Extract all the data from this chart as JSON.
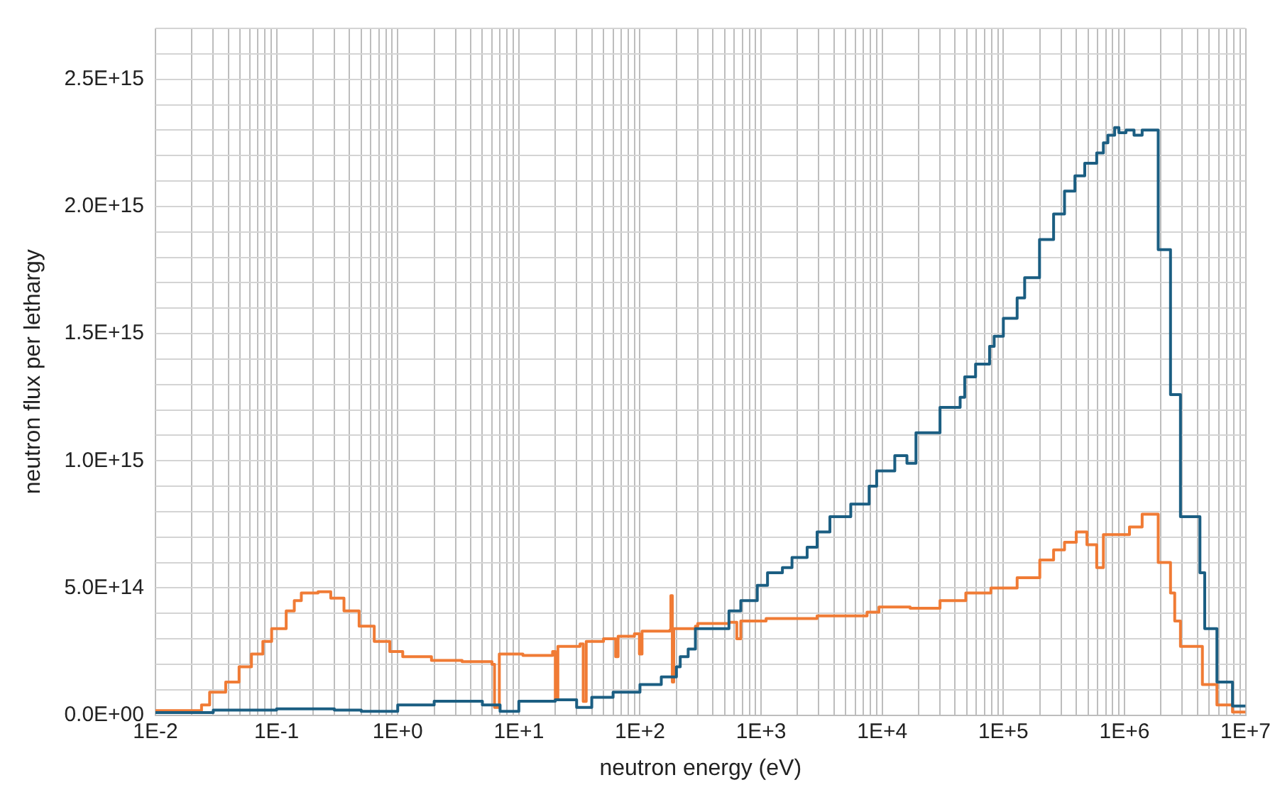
{
  "chart_data": {
    "type": "step",
    "xlabel": "neutron energy (eV)",
    "ylabel": "neutron flux per lethargy",
    "log": "x",
    "grid": true,
    "legend": false,
    "marker": "none",
    "line_style": "solid",
    "xlim": [
      0.01,
      10000000
    ],
    "xticks": [
      {
        "value": 0.01,
        "label": "1E-2"
      },
      {
        "value": 0.02,
        "label": null
      },
      {
        "value": 0.03,
        "label": null
      },
      {
        "value": 0.04,
        "label": null
      },
      {
        "value": 0.05,
        "label": null
      },
      {
        "value": 0.06,
        "label": null
      },
      {
        "value": 0.07,
        "label": null
      },
      {
        "value": 0.08,
        "label": null
      },
      {
        "value": 0.09,
        "label": null
      },
      {
        "value": 0.1,
        "label": "1E-1"
      },
      {
        "value": 0.2,
        "label": null
      },
      {
        "value": 0.3,
        "label": null
      },
      {
        "value": 0.4,
        "label": null
      },
      {
        "value": 0.5,
        "label": null
      },
      {
        "value": 0.6,
        "label": null
      },
      {
        "value": 0.7,
        "label": null
      },
      {
        "value": 0.8,
        "label": null
      },
      {
        "value": 0.9,
        "label": null
      },
      {
        "value": 1,
        "label": "1E+0"
      },
      {
        "value": 2,
        "label": null
      },
      {
        "value": 3,
        "label": null
      },
      {
        "value": 4,
        "label": null
      },
      {
        "value": 5,
        "label": null
      },
      {
        "value": 6,
        "label": null
      },
      {
        "value": 7,
        "label": null
      },
      {
        "value": 8,
        "label": null
      },
      {
        "value": 9,
        "label": null
      },
      {
        "value": 10,
        "label": "1E+1"
      },
      {
        "value": 20,
        "label": null
      },
      {
        "value": 30,
        "label": null
      },
      {
        "value": 40,
        "label": null
      },
      {
        "value": 50,
        "label": null
      },
      {
        "value": 60,
        "label": null
      },
      {
        "value": 70,
        "label": null
      },
      {
        "value": 80,
        "label": null
      },
      {
        "value": 90,
        "label": null
      },
      {
        "value": 100,
        "label": "1E+2"
      },
      {
        "value": 200,
        "label": null
      },
      {
        "value": 300,
        "label": null
      },
      {
        "value": 400,
        "label": null
      },
      {
        "value": 500,
        "label": null
      },
      {
        "value": 600,
        "label": null
      },
      {
        "value": 700,
        "label": null
      },
      {
        "value": 800,
        "label": null
      },
      {
        "value": 900,
        "label": null
      },
      {
        "value": 1000,
        "label": "1E+3"
      },
      {
        "value": 2000,
        "label": null
      },
      {
        "value": 3000,
        "label": null
      },
      {
        "value": 4000,
        "label": null
      },
      {
        "value": 5000,
        "label": null
      },
      {
        "value": 6000,
        "label": null
      },
      {
        "value": 7000,
        "label": null
      },
      {
        "value": 8000,
        "label": null
      },
      {
        "value": 9000,
        "label": null
      },
      {
        "value": 10000,
        "label": "1E+4"
      },
      {
        "value": 20000,
        "label": null
      },
      {
        "value": 30000,
        "label": null
      },
      {
        "value": 40000,
        "label": null
      },
      {
        "value": 50000,
        "label": null
      },
      {
        "value": 60000,
        "label": null
      },
      {
        "value": 70000,
        "label": null
      },
      {
        "value": 80000,
        "label": null
      },
      {
        "value": 90000,
        "label": null
      },
      {
        "value": 100000,
        "label": "1E+5"
      },
      {
        "value": 200000,
        "label": null
      },
      {
        "value": 300000,
        "label": null
      },
      {
        "value": 400000,
        "label": null
      },
      {
        "value": 500000,
        "label": null
      },
      {
        "value": 600000,
        "label": null
      },
      {
        "value": 700000,
        "label": null
      },
      {
        "value": 800000,
        "label": null
      },
      {
        "value": 900000,
        "label": null
      },
      {
        "value": 1000000,
        "label": "1E+6"
      },
      {
        "value": 2000000,
        "label": null
      },
      {
        "value": 3000000,
        "label": null
      },
      {
        "value": 4000000,
        "label": null
      },
      {
        "value": 5000000,
        "label": null
      },
      {
        "value": 6000000,
        "label": null
      },
      {
        "value": 7000000,
        "label": null
      },
      {
        "value": 8000000,
        "label": null
      },
      {
        "value": 9000000,
        "label": null
      },
      {
        "value": 10000000,
        "label": "1E+7"
      }
    ],
    "ylim": [
      0,
      2700000000000000.0
    ],
    "yticks": [
      {
        "value": 0,
        "label": "0.0E+00"
      },
      {
        "value": 100000000000000.0,
        "label": null
      },
      {
        "value": 200000000000000.0,
        "label": null
      },
      {
        "value": 300000000000000.0,
        "label": null
      },
      {
        "value": 400000000000000.0,
        "label": null
      },
      {
        "value": 500000000000000.0,
        "label": "5.0E+14"
      },
      {
        "value": 600000000000000.0,
        "label": null
      },
      {
        "value": 700000000000000.0,
        "label": null
      },
      {
        "value": 800000000000000.0,
        "label": null
      },
      {
        "value": 900000000000000.0,
        "label": null
      },
      {
        "value": 1000000000000000.0,
        "label": "1.0E+15"
      },
      {
        "value": 1100000000000000.0,
        "label": null
      },
      {
        "value": 1200000000000000.0,
        "label": null
      },
      {
        "value": 1300000000000000.0,
        "label": null
      },
      {
        "value": 1400000000000000.0,
        "label": null
      },
      {
        "value": 1500000000000000.0,
        "label": "1.5E+15"
      },
      {
        "value": 1600000000000000.0,
        "label": null
      },
      {
        "value": 1700000000000000.0,
        "label": null
      },
      {
        "value": 1800000000000000.0,
        "label": null
      },
      {
        "value": 1900000000000000.0,
        "label": null
      },
      {
        "value": 2000000000000000.0,
        "label": "2.0E+15"
      },
      {
        "value": 2100000000000000.0,
        "label": null
      },
      {
        "value": 2200000000000000.0,
        "label": null
      },
      {
        "value": 2300000000000000.0,
        "label": null
      },
      {
        "value": 2400000000000000.0,
        "label": null
      },
      {
        "value": 2500000000000000.0,
        "label": "2.5E+15"
      },
      {
        "value": 2600000000000000.0,
        "label": null
      },
      {
        "value": 2700000000000000.0,
        "label": null
      }
    ],
    "series": [
      {
        "color": "#1b5e82",
        "x": [
          0.01,
          0.03,
          0.1,
          0.3,
          0.5,
          1,
          2,
          5,
          7,
          10,
          20,
          30,
          40,
          60,
          100,
          150,
          200,
          215,
          250,
          287,
          543,
          680,
          930,
          1130,
          1500,
          1800,
          2400,
          2900,
          3700,
          5500,
          7800,
          9000,
          12700,
          16000,
          19000,
          30000,
          44000,
          48000,
          59000,
          77000,
          84000,
          100000,
          130000,
          150000,
          199000,
          260000,
          320000,
          390000,
          470000,
          590000,
          670000,
          730000,
          830000,
          900000,
          1030000,
          1200000,
          1400000,
          1900000,
          2400000,
          2900000,
          4200000,
          4600000,
          5800000,
          7800000,
          10000000
        ],
        "values": [
          10000000000000.0,
          20000000000000.0,
          25000000000000.0,
          20000000000000.0,
          15000000000000.0,
          40000000000000.0,
          55000000000000.0,
          40000000000000.0,
          15000000000000.0,
          55000000000000.0,
          60000000000000.0,
          30000000000000.0,
          70000000000000.0,
          90000000000000.0,
          120000000000000.0,
          150000000000000.0,
          190000000000000.0,
          230000000000000.0,
          260000000000000.0,
          340000000000000.0,
          410000000000000.0,
          450000000000000.0,
          510000000000000.0,
          560000000000000.0,
          580000000000000.0,
          620000000000000.0,
          660000000000000.0,
          720000000000000.0,
          780000000000000.0,
          830000000000000.0,
          900000000000000.0,
          960000000000000.0,
          1020000000000000.0,
          990000000000000.0,
          1110000000000000.0,
          1210000000000000.0,
          1250000000000000.0,
          1330000000000000.0,
          1380000000000000.0,
          1450000000000000.0,
          1490000000000000.0,
          1560000000000000.0,
          1640000000000000.0,
          1720000000000000.0,
          1870000000000000.0,
          1970000000000000.0,
          2060000000000000.0,
          2120000000000000.0,
          2170000000000000.0,
          2210000000000000.0,
          2250000000000000.0,
          2280000000000000.0,
          2310000000000000.0,
          2290000000000000.0,
          2300000000000000.0,
          2280000000000000.0,
          2300000000000000.0,
          1830000000000000.0,
          1260000000000000.0,
          780000000000000.0,
          560000000000000.0,
          340000000000000.0,
          130000000000000.0,
          36000000000000.0,
          36000000000000.0
        ]
      },
      {
        "color": "#f07b35",
        "x": [
          0.01,
          0.024,
          0.028,
          0.038,
          0.049,
          0.062,
          0.077,
          0.091,
          0.12,
          0.14,
          0.16,
          0.22,
          0.28,
          0.36,
          0.48,
          0.64,
          0.86,
          1.1,
          1.9,
          3.4,
          6,
          6.3,
          6.9,
          10.8,
          19,
          20,
          21,
          32,
          34,
          36,
          50,
          63,
          66,
          90,
          99,
          104,
          177,
          180,
          185,
          190,
          287,
          300,
          543,
          630,
          680,
          1100,
          2900,
          7500,
          9400,
          17000,
          30000,
          49000,
          79000,
          130000,
          200000,
          260000,
          320000,
          400000,
          490000,
          590000,
          670000,
          890000,
          1100000,
          1400000,
          1900000,
          2400000,
          2600000,
          2900000,
          4400000,
          5800000,
          7800000,
          10000000
        ],
        "values": [
          18000000000000.0,
          40000000000000.0,
          90000000000000.0,
          130000000000000.0,
          190000000000000.0,
          240000000000000.0,
          290000000000000.0,
          340000000000000.0,
          410000000000000.0,
          450000000000000.0,
          480000000000000.0,
          485000000000000.0,
          460000000000000.0,
          410000000000000.0,
          350000000000000.0,
          290000000000000.0,
          250000000000000.0,
          230000000000000.0,
          215000000000000.0,
          210000000000000.0,
          200000000000000.0,
          30000000000000.0,
          240000000000000.0,
          235000000000000.0,
          250000000000000.0,
          60000000000000.0,
          270000000000000.0,
          280000000000000.0,
          54000000000000.0,
          290000000000000.0,
          300000000000000.0,
          230000000000000.0,
          310000000000000.0,
          320000000000000.0,
          240000000000000.0,
          330000000000000.0,
          335000000000000.0,
          470000000000000.0,
          130000000000000.0,
          340000000000000.0,
          350000000000000.0,
          360000000000000.0,
          365000000000000.0,
          300000000000000.0,
          370000000000000.0,
          380000000000000.0,
          390000000000000.0,
          405000000000000.0,
          425000000000000.0,
          420000000000000.0,
          450000000000000.0,
          480000000000000.0,
          500000000000000.0,
          540000000000000.0,
          610000000000000.0,
          650000000000000.0,
          680000000000000.0,
          720000000000000.0,
          670000000000000.0,
          580000000000000.0,
          710000000000000.0,
          710000000000000.0,
          740000000000000.0,
          790000000000000.0,
          600000000000000.0,
          480000000000000.0,
          370000000000000.0,
          270000000000000.0,
          120000000000000.0,
          40000000000000.0,
          12000000000000.0,
          12000000000000.0
        ]
      }
    ]
  }
}
